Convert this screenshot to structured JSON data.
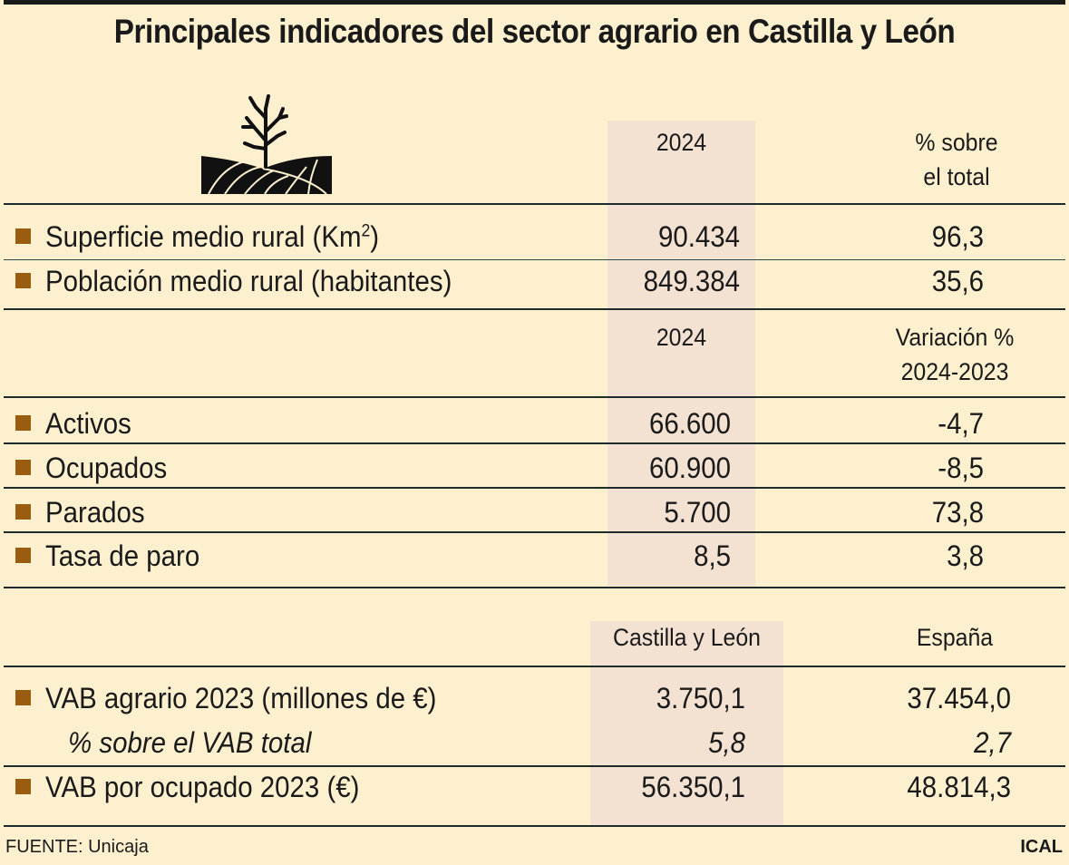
{
  "title": "Principales indicadores del sector agrario en Castilla y León",
  "icon": "tree-field-icon",
  "colors": {
    "background": "#fdf0cf",
    "highlight_column": "#f3e1d2",
    "bullet": "#9a5d10"
  },
  "section1": {
    "col1_header": "2024",
    "col2_header_line1": "% sobre",
    "col2_header_line2": "el total",
    "rows": [
      {
        "label": "Superficie medio rural (Km",
        "label_sup": "2",
        "label_end": ")",
        "v1": "90.434",
        "v2": "96,3"
      },
      {
        "label": "Población medio rural (habitantes)",
        "v1": "849.384",
        "v2": "35,6"
      }
    ]
  },
  "section2": {
    "col1_header": "2024",
    "col2_header_line1": "Variación %",
    "col2_header_line2": "2024-2023",
    "rows": [
      {
        "label": "Activos",
        "v1": "66.600",
        "v2": "-4,7"
      },
      {
        "label": "Ocupados",
        "v1": "60.900",
        "v2": "-8,5"
      },
      {
        "label": "Parados",
        "v1": "5.700",
        "v2": "73,8"
      },
      {
        "label": "Tasa de paro",
        "v1": "8,5",
        "v2": "3,8"
      }
    ]
  },
  "section3": {
    "col1_header": "Castilla y León",
    "col2_header": "España",
    "rows": [
      {
        "label": "VAB agrario 2023 (millones de €)",
        "v1": "3.750,1",
        "v2": "37.454,0"
      },
      {
        "label": "% sobre el VAB total",
        "v1": "5,8",
        "v2": "2,7"
      },
      {
        "label": "VAB por ocupado 2023 (€)",
        "v1": "56.350,1",
        "v2": "48.814,3"
      }
    ]
  },
  "footer": {
    "source": "FUENTE: Unicaja",
    "brand": "ICAL"
  },
  "chart_data": {
    "type": "table",
    "title": "Principales indicadores del sector agrario en Castilla y León",
    "tables": [
      {
        "columns": [
          "",
          "2024",
          "% sobre el total"
        ],
        "rows": [
          [
            "Superficie medio rural (Km2)",
            90434,
            96.3
          ],
          [
            "Población medio rural (habitantes)",
            849384,
            35.6
          ]
        ]
      },
      {
        "columns": [
          "",
          "2024",
          "Variación % 2024-2023"
        ],
        "rows": [
          [
            "Activos",
            66600,
            -4.7
          ],
          [
            "Ocupados",
            60900,
            -8.5
          ],
          [
            "Parados",
            5700,
            73.8
          ],
          [
            "Tasa de paro",
            8.5,
            3.8
          ]
        ]
      },
      {
        "columns": [
          "",
          "Castilla y León",
          "España"
        ],
        "rows": [
          [
            "VAB agrario 2023 (millones de €)",
            3750.1,
            37454.0
          ],
          [
            "% sobre el VAB total",
            5.8,
            2.7
          ],
          [
            "VAB por ocupado 2023 (€)",
            56350.1,
            48814.3
          ]
        ]
      }
    ],
    "source": "FUENTE: Unicaja"
  }
}
